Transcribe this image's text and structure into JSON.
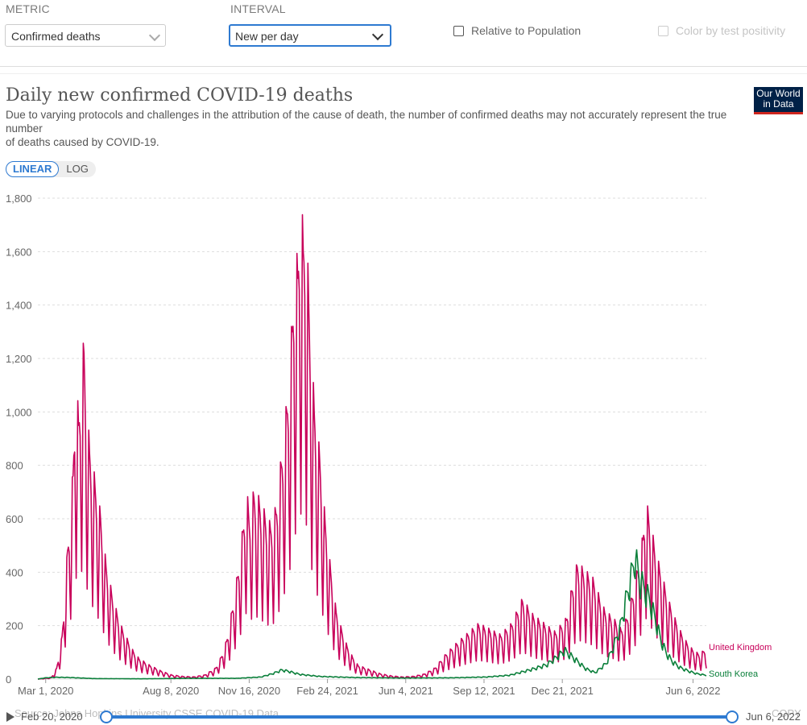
{
  "controls": {
    "metric_label": "METRIC",
    "metric_value": "Confirmed deaths",
    "interval_label": "INTERVAL",
    "interval_value": "New per day",
    "relative_label": "Relative to Population",
    "color_label": "Color by test positivity"
  },
  "chart_header": {
    "title": "Daily new confirmed COVID-19 deaths",
    "subtitle_line1": "Due to varying protocols and challenges in the attribution of the cause of death, the number of confirmed deaths may not accurately represent the true number",
    "subtitle_line2": "of deaths caused by COVID-19.",
    "logo_line1": "Our World",
    "logo_line2": "in Data"
  },
  "scale_toggle": {
    "linear": "LINEAR",
    "log": "LOG",
    "selected": "LINEAR"
  },
  "timeline": {
    "start": "Feb 20, 2020",
    "end": "Jun 6, 2022",
    "source": "Source: Johns Hopkins University CSSE COVID-19 Data",
    "copy": "COPY"
  },
  "colors": {
    "united_kingdom": "#c8005a",
    "south_korea": "#0a7f3a",
    "accent": "#2e7ad1"
  },
  "chart_data": {
    "type": "line",
    "xlabel": "",
    "ylabel": "",
    "ylim": [
      0,
      1800
    ],
    "yticks": [
      0,
      200,
      400,
      600,
      800,
      1000,
      1200,
      1400,
      1600,
      1800
    ],
    "ytick_labels": [
      "0",
      "200",
      "400",
      "600",
      "800",
      "1,000",
      "1,200",
      "1,400",
      "1,600",
      "1,800"
    ],
    "x_range": [
      "2020-02-20",
      "2022-06-23"
    ],
    "xticks": [
      "2020-03-01",
      "2020-08-08",
      "2020-11-16",
      "2021-02-24",
      "2021-06-04",
      "2021-09-12",
      "2021-12-21",
      "2022-06-06"
    ],
    "xtick_labels": [
      "Mar 1, 2020",
      "Aug 8, 2020",
      "Nov 16, 2020",
      "Feb 24, 2021",
      "Jun 4, 2021",
      "Sep 12, 2021",
      "Dec 21, 2021",
      "Jun 6, 2022"
    ],
    "grid": true,
    "legend": "line-end labels",
    "series": [
      {
        "name": "United Kingdom",
        "points": [
          [
            "2020-02-20",
            0
          ],
          [
            "2020-03-08",
            5
          ],
          [
            "2020-03-15",
            40
          ],
          [
            "2020-03-22",
            160
          ],
          [
            "2020-03-29",
            480
          ],
          [
            "2020-04-05",
            760
          ],
          [
            "2020-04-08",
            1120
          ],
          [
            "2020-04-12",
            950
          ],
          [
            "2020-04-15",
            1130
          ],
          [
            "2020-04-19",
            1220
          ],
          [
            "2020-04-22",
            1000
          ],
          [
            "2020-04-26",
            850
          ],
          [
            "2020-05-03",
            720
          ],
          [
            "2020-05-10",
            600
          ],
          [
            "2020-05-17",
            420
          ],
          [
            "2020-05-24",
            320
          ],
          [
            "2020-05-31",
            240
          ],
          [
            "2020-06-07",
            180
          ],
          [
            "2020-06-14",
            140
          ],
          [
            "2020-06-21",
            100
          ],
          [
            "2020-06-28",
            75
          ],
          [
            "2020-07-12",
            50
          ],
          [
            "2020-07-26",
            30
          ],
          [
            "2020-08-09",
            15
          ],
          [
            "2020-08-23",
            10
          ],
          [
            "2020-09-06",
            8
          ],
          [
            "2020-09-20",
            15
          ],
          [
            "2020-10-04",
            40
          ],
          [
            "2020-10-11",
            80
          ],
          [
            "2020-10-18",
            140
          ],
          [
            "2020-10-25",
            250
          ],
          [
            "2020-11-01",
            380
          ],
          [
            "2020-11-08",
            550
          ],
          [
            "2020-11-12",
            700
          ],
          [
            "2020-11-16",
            600
          ],
          [
            "2020-11-22",
            680
          ],
          [
            "2020-11-29",
            650
          ],
          [
            "2020-12-06",
            600
          ],
          [
            "2020-12-13",
            560
          ],
          [
            "2020-12-20",
            620
          ],
          [
            "2020-12-27",
            800
          ],
          [
            "2021-01-03",
            1000
          ],
          [
            "2021-01-10",
            1300
          ],
          [
            "2021-01-13",
            1570
          ],
          [
            "2021-01-17",
            1500
          ],
          [
            "2021-01-20",
            1820
          ],
          [
            "2021-01-24",
            1600
          ],
          [
            "2021-01-27",
            1730
          ],
          [
            "2021-01-31",
            1400
          ],
          [
            "2021-02-07",
            1000
          ],
          [
            "2021-02-14",
            820
          ],
          [
            "2021-02-21",
            580
          ],
          [
            "2021-02-28",
            400
          ],
          [
            "2021-03-07",
            250
          ],
          [
            "2021-03-14",
            180
          ],
          [
            "2021-03-21",
            120
          ],
          [
            "2021-03-28",
            80
          ],
          [
            "2021-04-04",
            50
          ],
          [
            "2021-04-18",
            35
          ],
          [
            "2021-05-02",
            20
          ],
          [
            "2021-05-16",
            12
          ],
          [
            "2021-05-30",
            8
          ],
          [
            "2021-06-13",
            10
          ],
          [
            "2021-06-27",
            18
          ],
          [
            "2021-07-11",
            40
          ],
          [
            "2021-07-25",
            90
          ],
          [
            "2021-08-08",
            130
          ],
          [
            "2021-08-22",
            165
          ],
          [
            "2021-09-05",
            200
          ],
          [
            "2021-09-19",
            180
          ],
          [
            "2021-10-03",
            160
          ],
          [
            "2021-10-17",
            200
          ],
          [
            "2021-10-31",
            290
          ],
          [
            "2021-11-14",
            230
          ],
          [
            "2021-11-28",
            200
          ],
          [
            "2021-12-12",
            170
          ],
          [
            "2021-12-26",
            220
          ],
          [
            "2022-01-02",
            330
          ],
          [
            "2022-01-09",
            420
          ],
          [
            "2022-01-16",
            400
          ],
          [
            "2022-01-23",
            380
          ],
          [
            "2022-01-30",
            360
          ],
          [
            "2022-02-06",
            300
          ],
          [
            "2022-02-13",
            250
          ],
          [
            "2022-02-20",
            230
          ],
          [
            "2022-02-27",
            210
          ],
          [
            "2022-03-06",
            180
          ],
          [
            "2022-03-13",
            220
          ],
          [
            "2022-03-20",
            300
          ],
          [
            "2022-03-27",
            400
          ],
          [
            "2022-04-03",
            520
          ],
          [
            "2022-04-06",
            660
          ],
          [
            "2022-04-13",
            560
          ],
          [
            "2022-04-20",
            450
          ],
          [
            "2022-04-27",
            380
          ],
          [
            "2022-05-04",
            300
          ],
          [
            "2022-05-11",
            240
          ],
          [
            "2022-05-18",
            190
          ],
          [
            "2022-05-25",
            150
          ],
          [
            "2022-06-01",
            120
          ],
          [
            "2022-06-08",
            100
          ],
          [
            "2022-06-15",
            90
          ],
          [
            "2022-06-23",
            115
          ]
        ]
      },
      {
        "name": "South Korea",
        "points": [
          [
            "2020-02-20",
            0
          ],
          [
            "2020-03-01",
            5
          ],
          [
            "2020-03-15",
            7
          ],
          [
            "2020-04-01",
            6
          ],
          [
            "2020-05-01",
            2
          ],
          [
            "2020-07-01",
            1
          ],
          [
            "2020-09-01",
            3
          ],
          [
            "2020-11-01",
            3
          ],
          [
            "2020-12-01",
            8
          ],
          [
            "2020-12-15",
            20
          ],
          [
            "2020-12-28",
            35
          ],
          [
            "2021-01-05",
            30
          ],
          [
            "2021-01-20",
            18
          ],
          [
            "2021-02-15",
            10
          ],
          [
            "2021-04-01",
            6
          ],
          [
            "2021-06-01",
            4
          ],
          [
            "2021-08-01",
            5
          ],
          [
            "2021-09-15",
            8
          ],
          [
            "2021-10-15",
            15
          ],
          [
            "2021-11-15",
            40
          ],
          [
            "2021-12-01",
            55
          ],
          [
            "2021-12-14",
            85
          ],
          [
            "2021-12-24",
            110
          ],
          [
            "2022-01-05",
            80
          ],
          [
            "2022-01-20",
            40
          ],
          [
            "2022-02-01",
            25
          ],
          [
            "2022-02-15",
            60
          ],
          [
            "2022-02-25",
            130
          ],
          [
            "2022-03-05",
            200
          ],
          [
            "2022-03-12",
            300
          ],
          [
            "2022-03-18",
            380
          ],
          [
            "2022-03-24",
            470
          ],
          [
            "2022-03-30",
            380
          ],
          [
            "2022-04-05",
            350
          ],
          [
            "2022-04-12",
            300
          ],
          [
            "2022-04-19",
            230
          ],
          [
            "2022-04-26",
            150
          ],
          [
            "2022-05-03",
            100
          ],
          [
            "2022-05-10",
            70
          ],
          [
            "2022-05-20",
            45
          ],
          [
            "2022-06-01",
            30
          ],
          [
            "2022-06-12",
            20
          ],
          [
            "2022-06-23",
            15
          ]
        ]
      }
    ]
  }
}
